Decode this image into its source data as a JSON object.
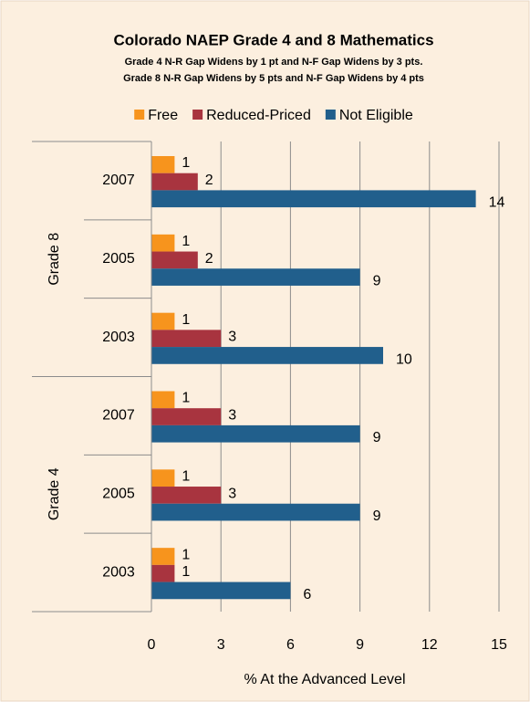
{
  "chart_data": {
    "type": "hbar",
    "title": "Colorado NAEP Grade 4 and 8 Mathematics",
    "subtitles": [
      "Grade 4 N-R Gap Widens by 1 pt and N-F Gap Widens by 3 pts.",
      "Grade 8 N-R Gap Widens by 5 pts and N-F Gap Widens by 4 pts"
    ],
    "x_label": "% At the Advanced Level",
    "groups": [
      {
        "name": "Grade 8",
        "categories": [
          "2007",
          "2005",
          "2003"
        ]
      },
      {
        "name": "Grade 4",
        "categories": [
          "2007",
          "2005",
          "2003"
        ]
      }
    ],
    "series": [
      {
        "name": "Free",
        "color": "#f7941d",
        "values": [
          1,
          1,
          1,
          1,
          1,
          1
        ]
      },
      {
        "name": "Reduced-Priced",
        "color": "#a8343f",
        "values": [
          2,
          2,
          3,
          3,
          3,
          1
        ]
      },
      {
        "name": "Not Eligible",
        "color": "#215f8c",
        "values": [
          14,
          9,
          10,
          9,
          9,
          6
        ]
      }
    ],
    "xlim": [
      0,
      15
    ],
    "xticks": [
      0,
      3,
      6,
      9,
      12,
      15
    ],
    "grid": true,
    "legend": "top"
  }
}
